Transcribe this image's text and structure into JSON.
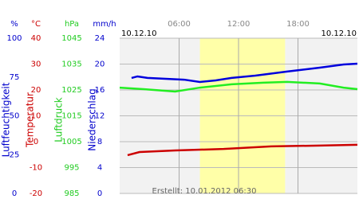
{
  "chart_data": {
    "type": "line",
    "dates": [
      "10.12.10",
      "10.12.10"
    ],
    "footer": "Erstellt: 10.01.2012 06:30",
    "xlim": [
      0,
      24
    ],
    "xticks": [
      {
        "value": 6,
        "label": "06:00"
      },
      {
        "value": 12,
        "label": "12:00"
      },
      {
        "value": 18,
        "label": "18:00"
      }
    ],
    "highlight": [
      8.1,
      16.7
    ],
    "axes": [
      {
        "unit": "%",
        "label": "Luftfeuchtigkeit",
        "color": "#0000cc",
        "lim": [
          0,
          100
        ],
        "ticks": [
          0,
          25,
          50,
          75,
          100
        ]
      },
      {
        "unit": "°C",
        "label": "Temperatur",
        "color": "#cc0000",
        "lim": [
          -20,
          40
        ],
        "ticks": [
          -20,
          -10,
          0,
          10,
          20,
          30,
          40
        ]
      },
      {
        "unit": "hPa",
        "label": "Luftdruck",
        "color": "#22cc22",
        "lim": [
          985,
          1045
        ],
        "ticks": [
          985,
          995,
          1005,
          1015,
          1025,
          1035,
          1045
        ]
      },
      {
        "unit": "mm/h",
        "label": "Niederschlag",
        "color": "#0000cc",
        "lim": [
          0,
          24
        ],
        "ticks": [
          0,
          4,
          8,
          12,
          16,
          20,
          24
        ]
      }
    ],
    "series": [
      {
        "axis": 0,
        "color": "#0000dd",
        "x": [
          1.2,
          1.8,
          2.8,
          6.5,
          8.1,
          9.7,
          11.3,
          13.7,
          16.9,
          20.2,
          22.6,
          24.0
        ],
        "values": [
          74.4,
          75.4,
          74.4,
          73.3,
          71.8,
          72.8,
          74.4,
          75.9,
          78.5,
          81.0,
          83.1,
          83.6
        ]
      },
      {
        "axis": 2,
        "color": "#22ee22",
        "x": [
          0,
          2.4,
          5.6,
          8.1,
          11.3,
          14.5,
          16.9,
          20.2,
          22.6,
          24.0
        ],
        "values": [
          1025.9,
          1025.3,
          1024.4,
          1025.9,
          1027.2,
          1027.8,
          1028.1,
          1027.5,
          1025.9,
          1025.3
        ]
      },
      {
        "axis": 1,
        "color": "#cc0000",
        "x": [
          0.8,
          2.0,
          5.6,
          10.5,
          15.3,
          20.2,
          24.0
        ],
        "values": [
          -5.2,
          -4.0,
          -3.4,
          -2.8,
          -1.8,
          -1.5,
          -1.2
        ]
      }
    ]
  }
}
